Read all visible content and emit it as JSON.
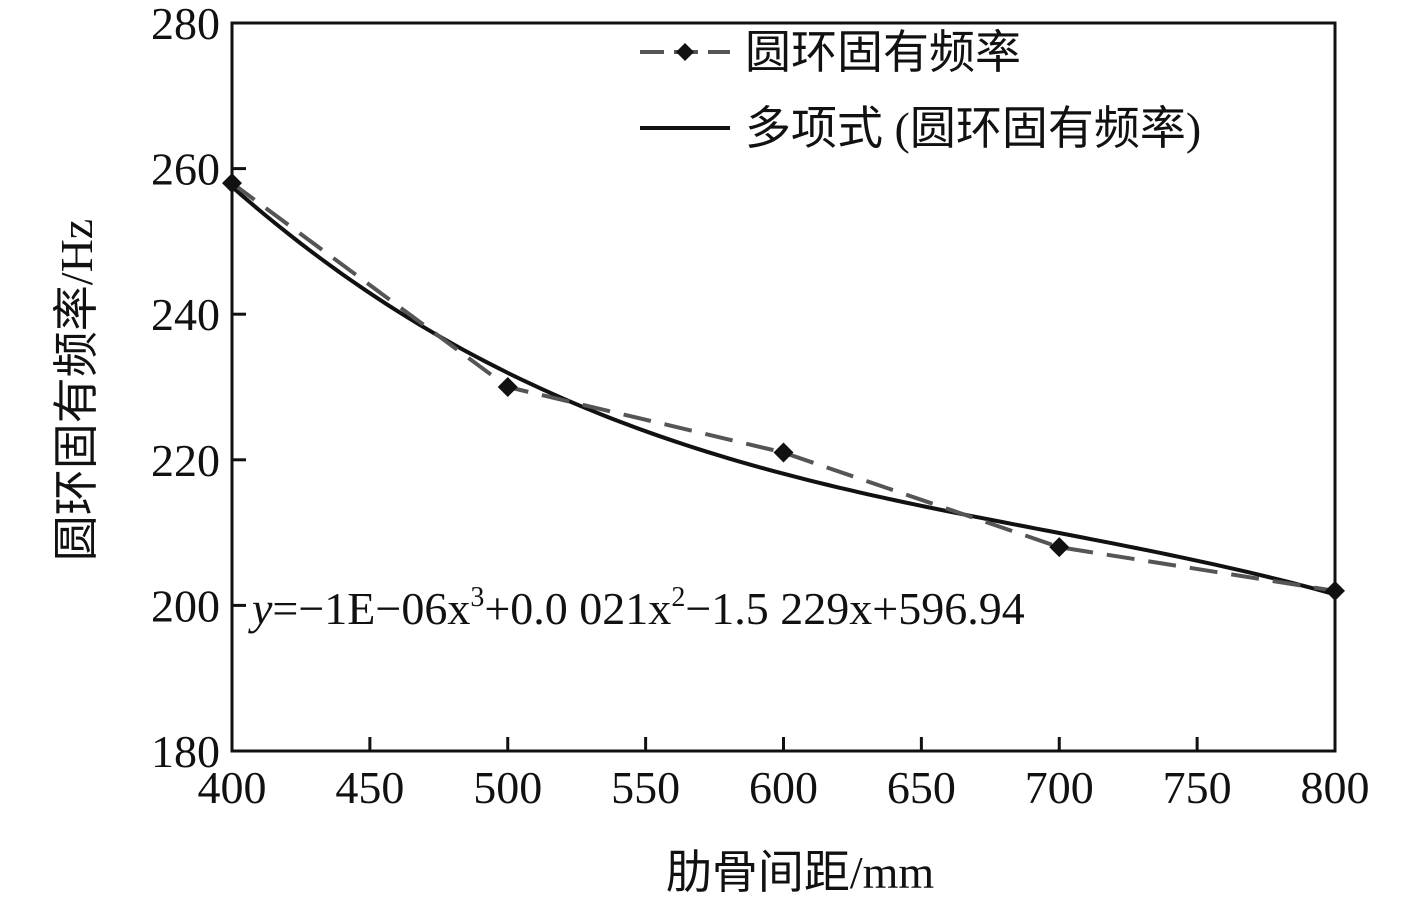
{
  "chart_data": {
    "type": "line",
    "xlabel": "肋骨间距/mm",
    "ylabel": "圆环固有频率/Hz",
    "xlim": [
      400,
      800
    ],
    "ylim": [
      180,
      280
    ],
    "xticks": [
      400,
      450,
      500,
      550,
      600,
      650,
      700,
      750,
      800
    ],
    "yticks": [
      180,
      200,
      220,
      240,
      260,
      280
    ],
    "grid": false,
    "legend_position": "top-right",
    "series": [
      {
        "name": "圆环固有频率",
        "style": "dashed-with-diamond-markers",
        "color": "#555555",
        "x": [
          400,
          500,
          600,
          700,
          800
        ],
        "y": [
          258,
          230,
          221,
          208,
          202
        ]
      },
      {
        "name": "多项式 (圆环固有频率)",
        "style": "solid",
        "color": "#111111",
        "fit": "polynomial",
        "coefficients": [
          -1e-06,
          0.0021,
          -1.5229,
          596.94
        ]
      }
    ],
    "annotation": {
      "italic_prefix": "y",
      "equation_parts": [
        "=−1E−06x",
        "3",
        "+0.0 021x",
        "2",
        "−1.5 229x+596.94"
      ]
    }
  }
}
